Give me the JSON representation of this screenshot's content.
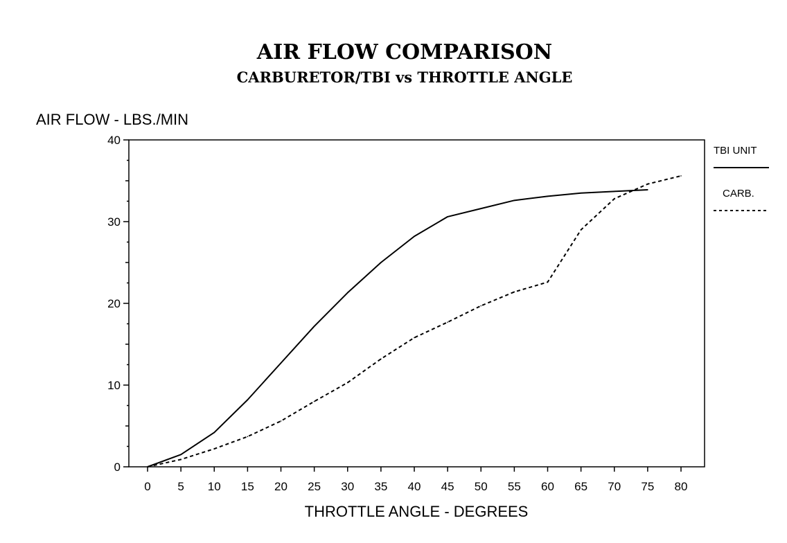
{
  "chart_data": {
    "type": "line",
    "title": "AIR FLOW COMPARISON",
    "subtitle": "CARBURETOR/TBI vs THROTTLE ANGLE",
    "xlabel": "THROTTLE ANGLE - DEGREES",
    "ylabel": "AIR FLOW - LBS./MIN",
    "xlim": [
      0,
      80
    ],
    "ylim": [
      0,
      40
    ],
    "x_ticks": [
      "0",
      "5",
      "10",
      "15",
      "20",
      "25",
      "30",
      "35",
      "40",
      "45",
      "50",
      "55",
      "60",
      "65",
      "70",
      "75",
      "80"
    ],
    "y_ticks": [
      "0",
      "10",
      "20",
      "30",
      "40"
    ],
    "grid": false,
    "legend_position": "right",
    "series": [
      {
        "name": "TBI UNIT",
        "style": "solid",
        "x": [
          0,
          5,
          10,
          15,
          20,
          25,
          30,
          35,
          40,
          45,
          50,
          55,
          60,
          65,
          70,
          75
        ],
        "values": [
          0,
          1.5,
          4.2,
          8.2,
          12.7,
          17.2,
          21.3,
          25.0,
          28.2,
          30.6,
          31.6,
          32.6,
          33.1,
          33.5,
          33.7,
          33.9
        ]
      },
      {
        "name": "CARB.",
        "style": "dashed",
        "x": [
          0,
          5,
          10,
          15,
          20,
          25,
          30,
          35,
          40,
          45,
          50,
          55,
          60,
          65,
          70,
          75,
          80
        ],
        "values": [
          0,
          0.9,
          2.2,
          3.7,
          5.6,
          8.0,
          10.3,
          13.2,
          15.8,
          17.7,
          19.7,
          21.4,
          22.6,
          29.0,
          32.8,
          34.6,
          35.6
        ]
      }
    ]
  }
}
